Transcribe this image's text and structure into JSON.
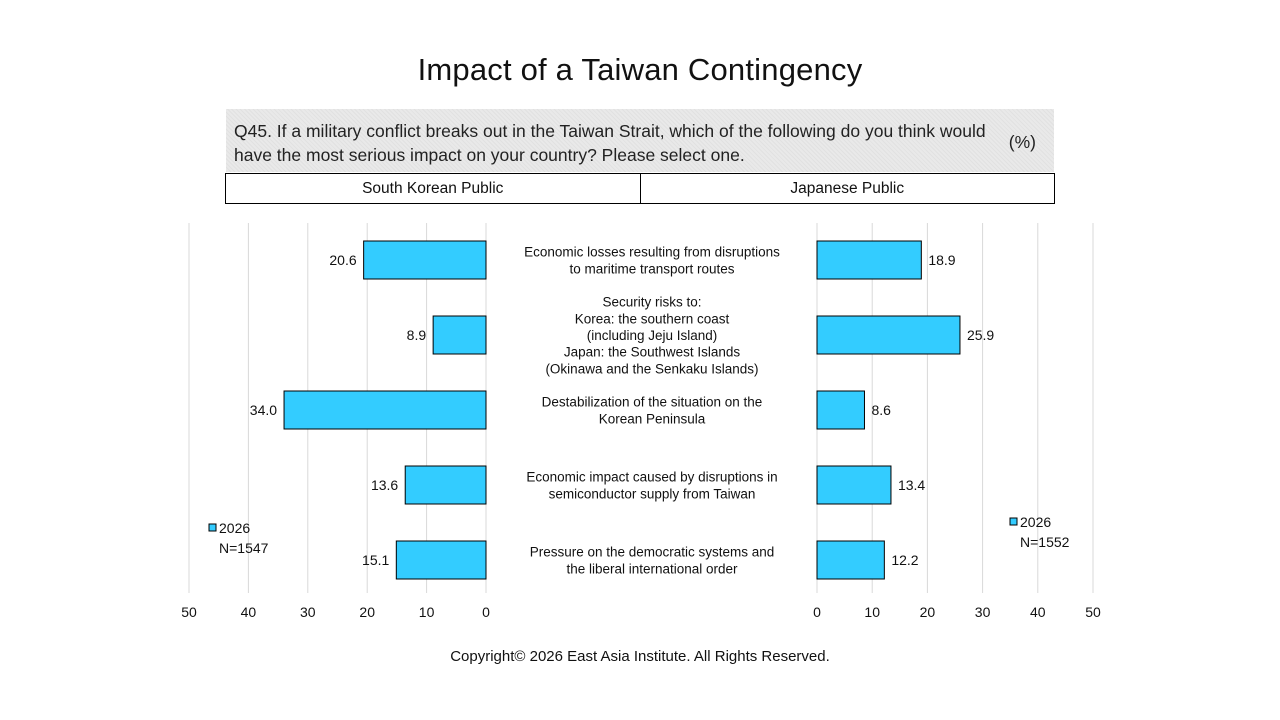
{
  "title": "Impact of a Taiwan Contingency",
  "question": "Q45. If a military conflict breaks out in the Taiwan Strait, which of the following do you think would have the most serious impact on your country? Please select one.",
  "unit": "(%)",
  "copyright": "Copyright© 2026 East Asia Institute. All Rights Reserved.",
  "colors": {
    "bar": "#33ccff",
    "bar_stroke": "#000000",
    "grid": "#d9d9d9"
  },
  "chart_data": {
    "type": "bar",
    "orientation": "horizontal",
    "layout": "back-to-back",
    "grid": true,
    "xlim": [
      0,
      50
    ],
    "x_ticks": [
      "0",
      "10",
      "20",
      "30",
      "40",
      "50"
    ],
    "categories": [
      [
        "Economic losses resulting from disruptions",
        "to maritime transport routes"
      ],
      [
        "Security risks to:",
        "Korea: the southern coast",
        "(including Jeju Island)",
        "Japan: the Southwest Islands",
        "(Okinawa and the Senkaku Islands)"
      ],
      [
        "Destabilization of the situation on the",
        "Korean Peninsula"
      ],
      [
        "Economic impact caused by disruptions in",
        "semiconductor supply from Taiwan"
      ],
      [
        "Pressure on the democratic systems and",
        "the liberal international order"
      ]
    ],
    "panels": [
      {
        "header": "South Korean Public",
        "series": [
          {
            "name": "2026",
            "values": [
              20.6,
              8.9,
              34.0,
              13.6,
              15.1
            ]
          }
        ],
        "value_labels": [
          "20.6",
          "8.9",
          "34.0",
          "13.6",
          "15.1"
        ],
        "legend_label": "2026",
        "sample_size": "N=1547"
      },
      {
        "header": "Japanese Public",
        "series": [
          {
            "name": "2026",
            "values": [
              18.9,
              25.9,
              8.6,
              13.4,
              12.2
            ]
          }
        ],
        "value_labels": [
          "18.9",
          "25.9",
          "8.6",
          "13.4",
          "12.2"
        ],
        "legend_label": "2026",
        "sample_size": "N=1552"
      }
    ]
  }
}
